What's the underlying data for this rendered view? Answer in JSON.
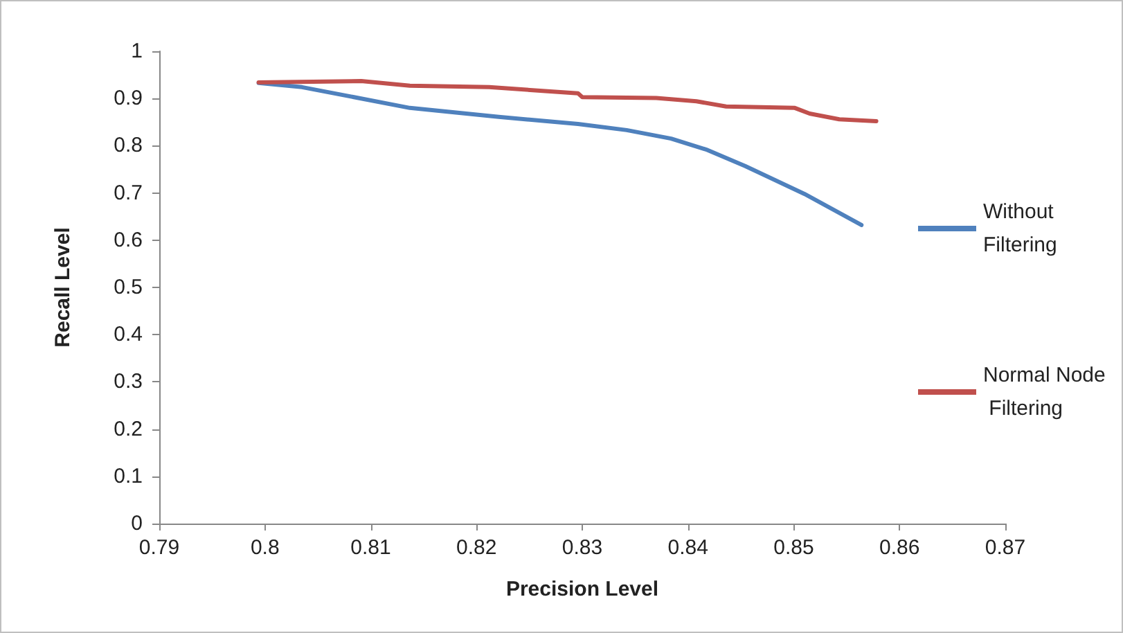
{
  "chart_data": {
    "type": "line",
    "xlabel": "Precision Level",
    "ylabel": "Recall Level",
    "xlim": [
      0.79,
      0.87
    ],
    "xticks": [
      0.79,
      0.8,
      0.81,
      0.82,
      0.83,
      0.84,
      0.85,
      0.86,
      0.87
    ],
    "ylim": [
      0,
      1
    ],
    "yticks": [
      0,
      0.1,
      0.2,
      0.3,
      0.4,
      0.5,
      0.6,
      0.7,
      0.8,
      0.9,
      1
    ],
    "grid": false,
    "legend": "right",
    "marker": "none",
    "line_style": "solid",
    "series": [
      {
        "name": "Without Filtering",
        "color": "#4f81bd",
        "x": [
          0.7994,
          0.8035,
          0.8137,
          0.8221,
          0.8296,
          0.8342,
          0.8384,
          0.8417,
          0.8454,
          0.851,
          0.8564
        ],
        "values": [
          0.933,
          0.924,
          0.88,
          0.861,
          0.846,
          0.833,
          0.815,
          0.792,
          0.757,
          0.698,
          0.632
        ]
      },
      {
        "name": "Normal Node Filtering",
        "color": "#c0504d",
        "x": [
          0.7994,
          0.8091,
          0.8137,
          0.8212,
          0.8296,
          0.83,
          0.837,
          0.8408,
          0.8436,
          0.8501,
          0.8515,
          0.8543,
          0.8578
        ],
        "values": [
          0.934,
          0.937,
          0.927,
          0.924,
          0.911,
          0.903,
          0.901,
          0.894,
          0.883,
          0.88,
          0.868,
          0.856,
          0.852
        ]
      }
    ]
  }
}
